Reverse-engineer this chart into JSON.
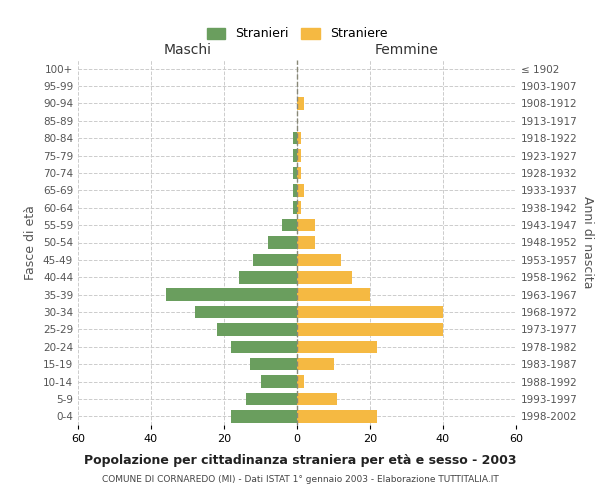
{
  "age_groups": [
    "0-4",
    "5-9",
    "10-14",
    "15-19",
    "20-24",
    "25-29",
    "30-34",
    "35-39",
    "40-44",
    "45-49",
    "50-54",
    "55-59",
    "60-64",
    "65-69",
    "70-74",
    "75-79",
    "80-84",
    "85-89",
    "90-94",
    "95-99",
    "100+"
  ],
  "birth_years": [
    "1998-2002",
    "1993-1997",
    "1988-1992",
    "1983-1987",
    "1978-1982",
    "1973-1977",
    "1968-1972",
    "1963-1967",
    "1958-1962",
    "1953-1957",
    "1948-1952",
    "1943-1947",
    "1938-1942",
    "1933-1937",
    "1928-1932",
    "1923-1927",
    "1918-1922",
    "1913-1917",
    "1908-1912",
    "1903-1907",
    "≤ 1902"
  ],
  "maschi": [
    18,
    14,
    10,
    13,
    18,
    22,
    28,
    36,
    16,
    12,
    8,
    4,
    1,
    1,
    1,
    1,
    1,
    0,
    0,
    0,
    0
  ],
  "femmine": [
    22,
    11,
    2,
    10,
    22,
    40,
    40,
    20,
    15,
    12,
    5,
    5,
    1,
    2,
    1,
    1,
    1,
    0,
    2,
    0,
    0
  ],
  "maschi_color": "#6a9e5e",
  "femmine_color": "#f5b942",
  "background_color": "#ffffff",
  "grid_color": "#cccccc",
  "title": "Popolazione per cittadinanza straniera per età e sesso - 2003",
  "subtitle": "COMUNE DI CORNAREDO (MI) - Dati ISTAT 1° gennaio 2003 - Elaborazione TUTTITALIA.IT",
  "ylabel_left": "Fasce di età",
  "ylabel_right": "Anni di nascita",
  "xlabel_left": "Maschi",
  "xlabel_right": "Femmine",
  "legend_maschi": "Stranieri",
  "legend_femmine": "Straniere",
  "xlim": 60,
  "dashed_line_color": "#888877"
}
